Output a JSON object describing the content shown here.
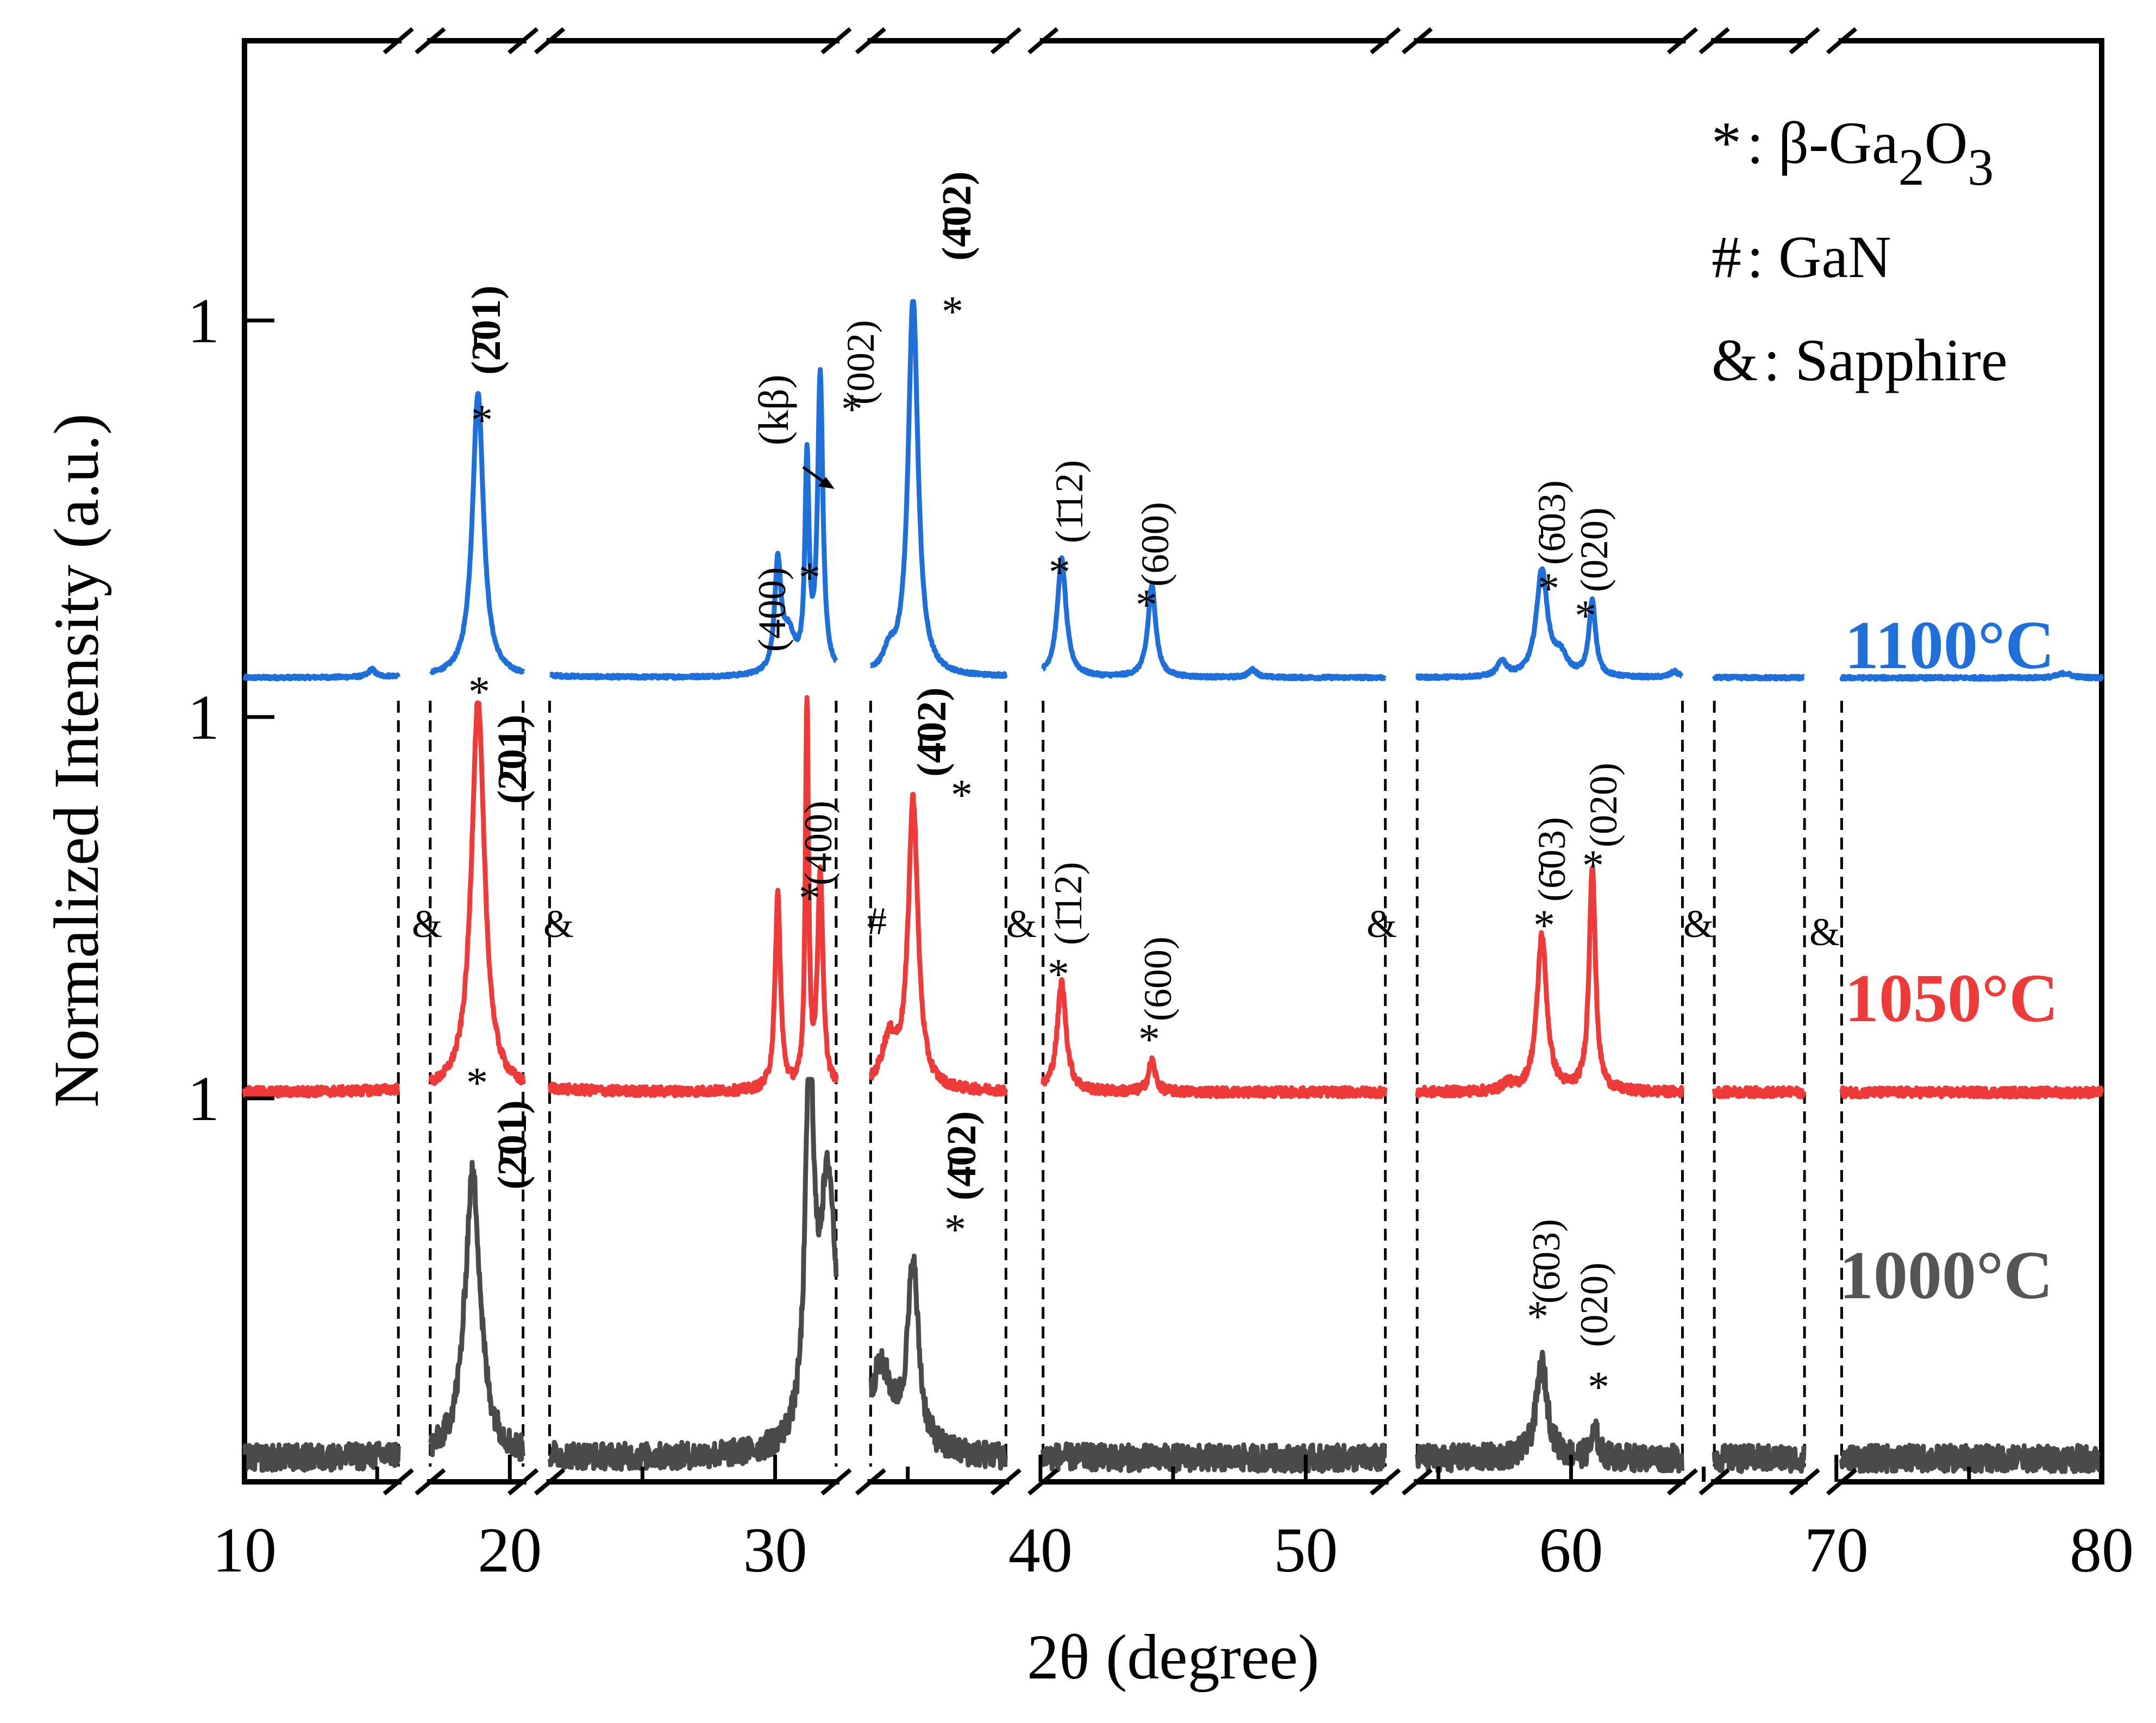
{
  "chart_data": {
    "type": "line",
    "title": "",
    "xlabel": "2θ (degree)",
    "ylabel": "Normalized Intensity (a.u.)",
    "xlim": [
      10,
      80
    ],
    "x_ticks": [
      "10",
      "20",
      "30",
      "40",
      "50",
      "60",
      "70",
      "80"
    ],
    "y_tick_label": "1",
    "axis_breaks": [
      [
        15.8,
        17.0
      ],
      [
        20.5,
        21.5
      ],
      [
        32.3,
        33.6
      ],
      [
        38.7,
        40.1
      ],
      [
        53.0,
        54.2
      ],
      [
        64.2,
        65.4
      ],
      [
        68.8,
        70.2
      ]
    ],
    "legend": [
      {
        "symbol": "*",
        "text": ":  β-Ga",
        "sub1": "2",
        "mid": "O",
        "sub2": "3"
      },
      {
        "symbol": "#",
        "text": ":  GaN"
      },
      {
        "symbol": "&",
        "text": ": Sapphire"
      }
    ],
    "series": [
      {
        "name": "1100°C",
        "color": "#1e6fd9",
        "baseline": 0.06,
        "noise": 0.004,
        "peaks": [
          [
            14.8,
            0.02,
            0.15
          ],
          [
            18.8,
            0.75,
            0.25
          ],
          [
            30.1,
            0.28,
            0.14
          ],
          [
            30.5,
            0.1,
            0.3
          ],
          [
            31.2,
            0.55,
            0.09
          ],
          [
            31.7,
            0.78,
            0.12
          ],
          [
            34.3,
            0.05,
            0.25
          ],
          [
            35.2,
            1.0,
            0.22
          ],
          [
            40.8,
            0.31,
            0.2
          ],
          [
            44.2,
            0.24,
            0.18
          ],
          [
            48.0,
            0.02,
            0.2
          ],
          [
            57.4,
            0.04,
            0.2
          ],
          [
            58.9,
            0.28,
            0.25
          ],
          [
            59.6,
            0.05,
            0.3
          ],
          [
            60.8,
            0.2,
            0.15
          ],
          [
            63.9,
            0.015,
            0.2
          ],
          [
            78.6,
            0.012,
            0.3
          ]
        ]
      },
      {
        "name": "1050°C",
        "color": "#ef3a3a",
        "baseline": 0.04,
        "noise": 0.012,
        "peaks": [
          [
            18.8,
            1.0,
            0.3
          ],
          [
            30.1,
            0.5,
            0.12
          ],
          [
            31.2,
            1.0,
            0.07
          ],
          [
            31.7,
            0.55,
            0.12
          ],
          [
            34.3,
            0.12,
            0.35
          ],
          [
            35.2,
            0.74,
            0.22
          ],
          [
            40.8,
            0.28,
            0.2
          ],
          [
            44.2,
            0.08,
            0.15
          ],
          [
            57.6,
            0.02,
            0.2
          ],
          [
            58.9,
            0.4,
            0.22
          ],
          [
            60.8,
            0.58,
            0.14
          ]
        ]
      },
      {
        "name": "1000°C",
        "color": "#4a4a4a",
        "baseline": 0.05,
        "noise": 0.035,
        "peaks": [
          [
            18.6,
            0.75,
            0.35
          ],
          [
            31.3,
            1.0,
            0.18
          ],
          [
            32.0,
            0.7,
            0.4
          ],
          [
            34.0,
            0.2,
            0.5
          ],
          [
            35.2,
            0.48,
            0.25
          ],
          [
            58.9,
            0.25,
            0.25
          ],
          [
            60.9,
            0.07,
            0.15
          ]
        ]
      }
    ],
    "annotations": {
      "peak_labels": {
        "p201": "(2̄01)",
        "p400": "(400)",
        "p002": "(002)",
        "p402": "(4̄02)",
        "p112": "(1̄12)",
        "p600": "(600)",
        "p603": "(6̄03)",
        "p020": "(020)",
        "kbeta": "(kβ)",
        "star": "*",
        "hash": "#",
        "amp": "&"
      }
    }
  }
}
